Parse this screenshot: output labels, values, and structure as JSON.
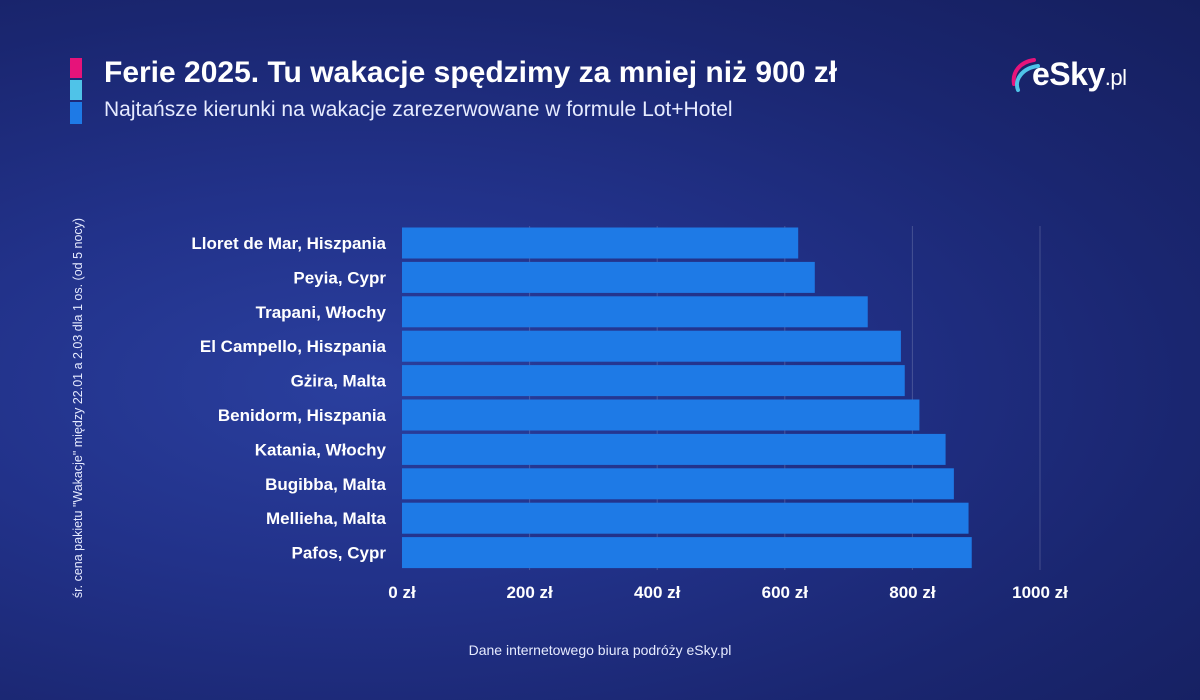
{
  "header": {
    "title": "Ferie 2025. Tu wakacje spędzimy za mniej niż 900 zł",
    "subtitle": "Najtańsze kierunki na wakacje zarezerwowane w formule Lot+Hotel"
  },
  "logo": {
    "main": "eSky",
    "suffix": ".pl"
  },
  "footer": {
    "source": "Dane internetowego biura podróży eSky.pl"
  },
  "colors": {
    "bar": "#1e7ae6",
    "accent_pink": "#e6137a",
    "accent_cyan": "#4fc3e8",
    "accent_blue": "#1e7ae6"
  },
  "chart_data": {
    "type": "bar",
    "orientation": "horizontal",
    "title": "Ferie 2025. Tu wakacje spędzimy za mniej niż 900 zł",
    "subtitle": "Najtańsze kierunki na wakacje zarezerwowane w formule Lot+Hotel",
    "ylabel": "śr. cena pakietu \"Wakacje\" między 22.01 a 2.03 dla 1 os.  (od 5 nocy)",
    "xlabel": "",
    "categories": [
      "Lloret de Mar, Hiszpania",
      "Peyia, Cypr",
      "Trapani, Włochy",
      "El Campello, Hiszpania",
      "Gżira, Malta",
      "Benidorm, Hiszpania",
      "Katania, Włochy",
      "Bugibba, Malta",
      "Mellieha, Malta",
      "Pafos, Cypr"
    ],
    "values": [
      621,
      647,
      730,
      782,
      788,
      811,
      852,
      865,
      888,
      893
    ],
    "xlim": [
      0,
      1000
    ],
    "ticks": [
      0,
      200,
      400,
      600,
      800,
      1000
    ],
    "tick_labels": [
      "0 zł",
      "200 zł",
      "400 zł",
      "600 zł",
      "800 zł",
      "1000 zł"
    ],
    "grid": true,
    "legend": "none"
  }
}
